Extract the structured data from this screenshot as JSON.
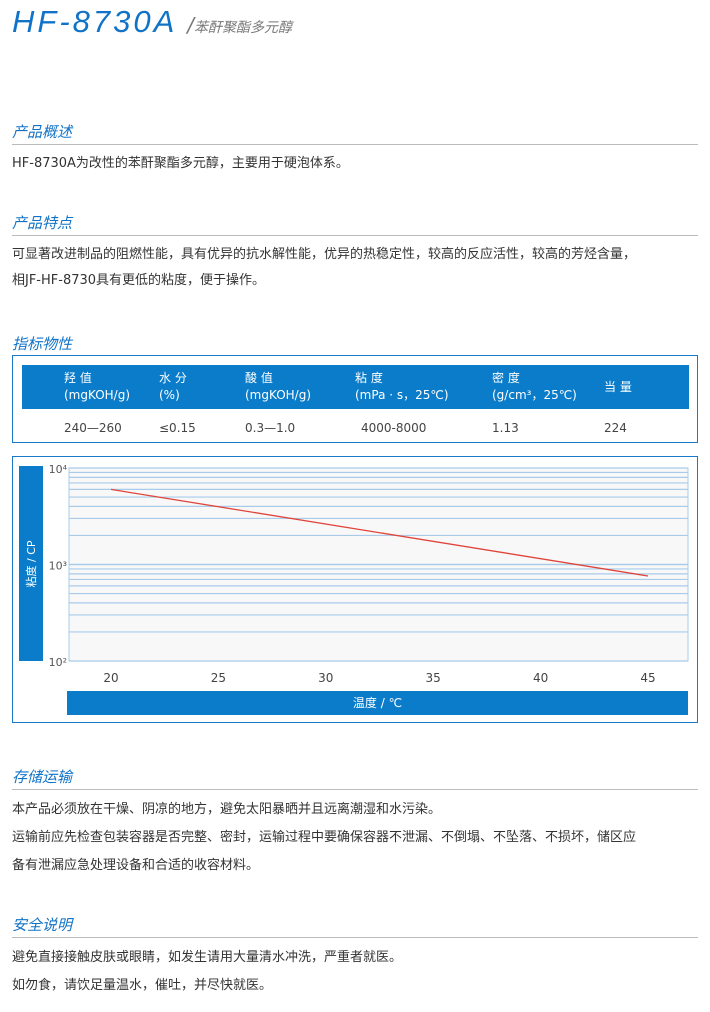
{
  "header": {
    "model": "HF-8730A",
    "subtitle": "苯酐聚酯多元醇"
  },
  "overview": {
    "title": "产品概述",
    "text": "HF-8730A为改性的苯酐聚酯多元醇，主要用于硬泡体系。"
  },
  "features": {
    "title": "产品特点",
    "lines": [
      "可显著改进制品的阻燃性能，具有优异的抗水解性能，优异的热稳定性，较高的反应活性，较高的芳烃含量，",
      "相JF-HF-8730具有更低的粘度，便于操作。"
    ]
  },
  "specs": {
    "title": "指标物性",
    "headers": [
      [
        "羟 值",
        "(mgKOH/g)"
      ],
      [
        "水 分",
        "(%)"
      ],
      [
        "酸 值",
        "(mgKOH/g)"
      ],
      [
        "粘 度",
        "(mPa · s，25℃)"
      ],
      [
        "密 度",
        "(g/cm³，25℃)"
      ],
      [
        "当 量",
        ""
      ]
    ],
    "values": [
      "240—260",
      "≤0.15",
      "0.3—1.0",
      "4000-8000",
      "1.13",
      "224"
    ]
  },
  "chart_data": {
    "type": "line",
    "xlabel": "温度 / ℃",
    "ylabel": "粘度 / CP",
    "yscale": "log",
    "ylim": [
      100,
      10000
    ],
    "xticks": [
      20,
      25,
      30,
      35,
      40,
      45
    ],
    "yticks": [
      "10⁴",
      "10³",
      "10²"
    ],
    "grid": true,
    "series": [
      {
        "x": [
          20,
          45
        ],
        "y": [
          6000,
          760
        ],
        "color": "#e0443a"
      }
    ]
  },
  "storage": {
    "title": "存储运输",
    "lines": [
      "本产品必须放在干燥、阴凉的地方，避免太阳暴晒并且远离潮湿和水污染。",
      "运输前应先检查包装容器是否完整、密封，运输过程中要确保容器不泄漏、不倒塌、不坠落、不损坏，储区应",
      "备有泄漏应急处理设备和合适的收容材料。"
    ]
  },
  "safety": {
    "title": "安全说明",
    "lines": [
      "避免直接接触皮肤或眼睛，如发生请用大量清水冲洗，严重者就医。",
      "如勿食，请饮足量温水，催吐，并尽快就医。"
    ]
  },
  "colors": {
    "accent": "#1173c7",
    "grid": "#a9cbea",
    "line": "#e0443a"
  }
}
